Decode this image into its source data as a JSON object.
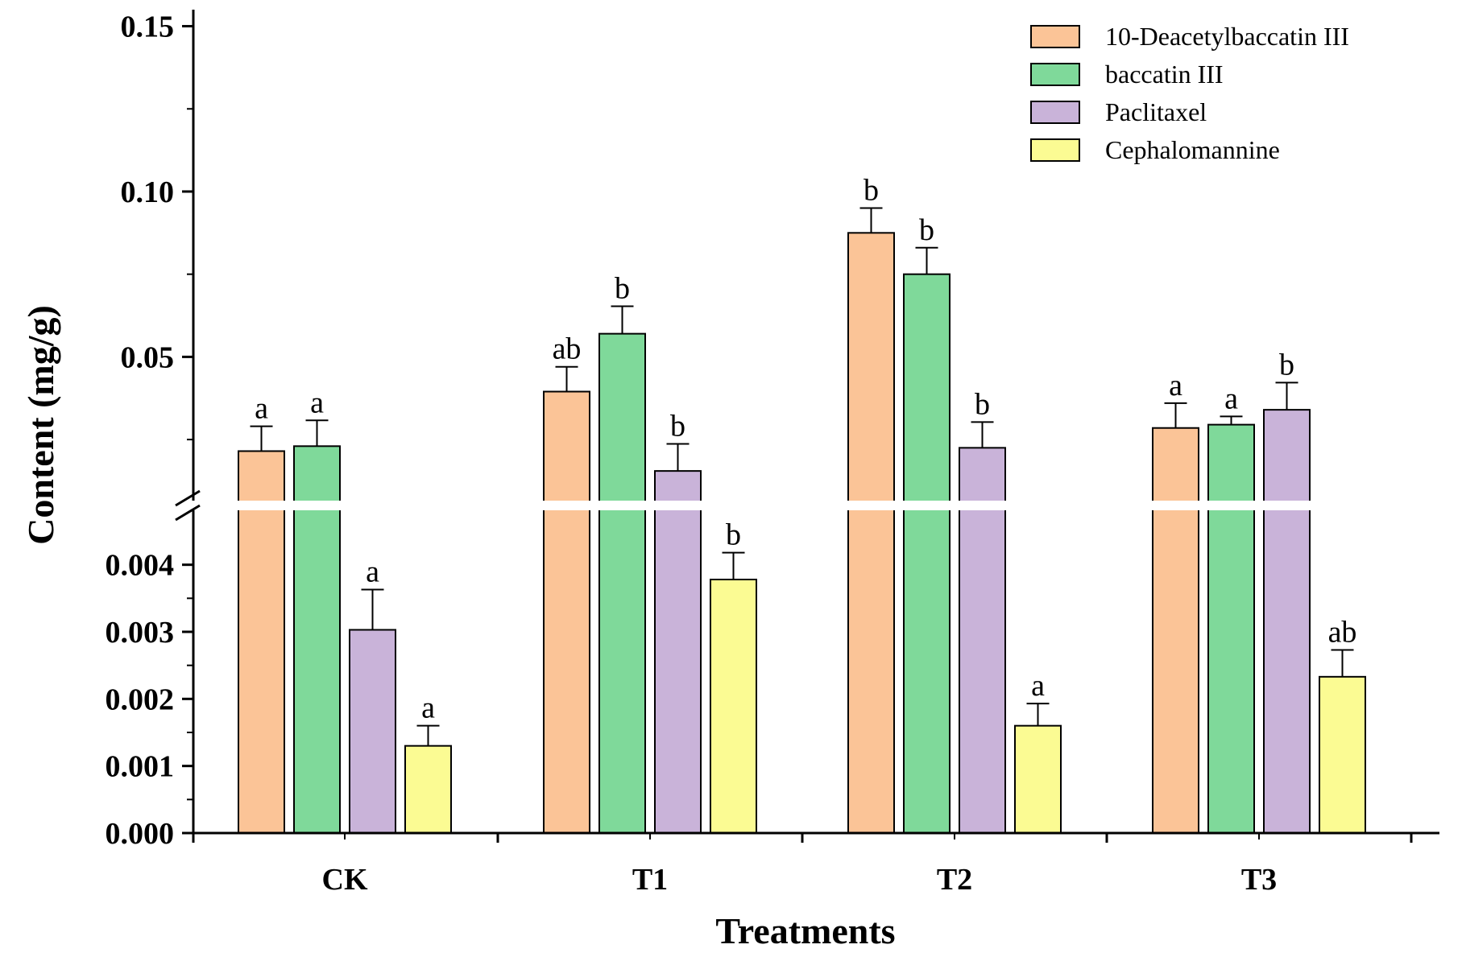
{
  "chart_data": {
    "type": "bar",
    "title": "",
    "xlabel": "Treatments",
    "ylabel": "Content (mg/g)",
    "categories": [
      "CK",
      "T1",
      "T2",
      "T3"
    ],
    "y_axis_break": true,
    "lower_segment": {
      "ylim": [
        0,
        0.0048
      ],
      "ticks": [
        "0.000",
        "0.001",
        "0.002",
        "0.003",
        "0.004"
      ]
    },
    "upper_segment": {
      "ylim": [
        0.0075,
        0.155
      ],
      "ticks": [
        "0.05",
        "0.10",
        "0.15"
      ]
    },
    "legend_position": "top-right",
    "series": [
      {
        "name": "10-Deacetylbaccatin III",
        "color": "#fbc497",
        "values": [
          0.0215,
          0.0395,
          0.0875,
          0.0285
        ],
        "errors": [
          0.0075,
          0.0075,
          0.0075,
          0.0075
        ],
        "letters": [
          "a",
          "ab",
          "b",
          "a"
        ]
      },
      {
        "name": "baccatin III",
        "color": "#7fd99a",
        "values": [
          0.023,
          0.057,
          0.075,
          0.0295
        ],
        "errors": [
          0.0078,
          0.0083,
          0.008,
          0.0025
        ],
        "letters": [
          "a",
          "b",
          "b",
          "a"
        ]
      },
      {
        "name": "Paclitaxel",
        "color": "#c9b3d9",
        "values": [
          0.00303,
          0.0155,
          0.0225,
          0.034
        ],
        "errors": [
          0.0006,
          0.0082,
          0.0078,
          0.0082
        ],
        "letters": [
          "a",
          "b",
          "b",
          "b"
        ]
      },
      {
        "name": "Cephalomannine",
        "color": "#fbfb93",
        "values": [
          0.0013,
          0.00378,
          0.0016,
          0.00233
        ],
        "errors": [
          0.0003,
          0.0004,
          0.00033,
          0.0004
        ],
        "letters": [
          "a",
          "b",
          "a",
          "ab"
        ]
      }
    ]
  }
}
